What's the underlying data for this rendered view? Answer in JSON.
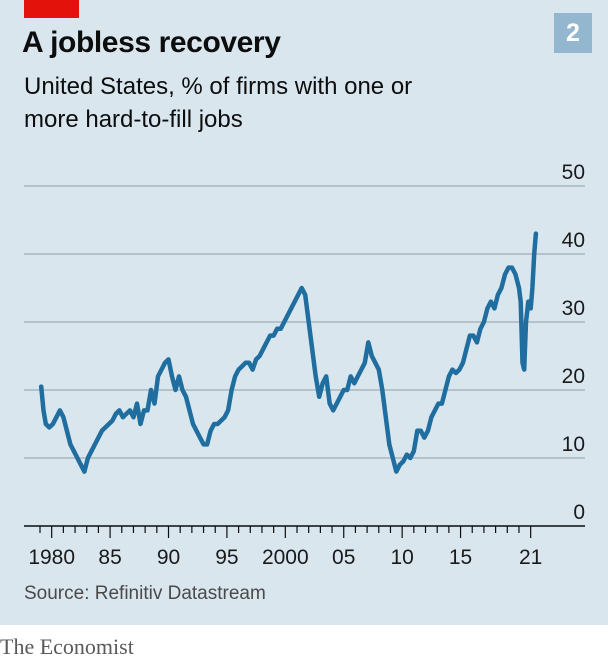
{
  "header": {
    "title": "A jobless recovery",
    "subtitle": "United States, % of firms with one or more hard-to-fill jobs",
    "chart_number": "2"
  },
  "footer": {
    "source": "Source: Refinitiv Datastream",
    "brand": "The Economist"
  },
  "colors": {
    "background": "#d9e6ee",
    "line": "#1f6e9f",
    "accent_tag": "#e3120b",
    "badge": "#92b7cf"
  },
  "chart_data": {
    "type": "line",
    "title": "A jobless recovery",
    "subtitle": "United States, % of firms with one or more hard-to-fill jobs",
    "xlabel": "",
    "ylabel": "",
    "ylim": [
      0,
      50
    ],
    "xlim": [
      1979,
      2021.8
    ],
    "yticks": [
      0,
      10,
      20,
      30,
      40,
      50
    ],
    "ytick_labels": [
      "0",
      "10",
      "20",
      "30",
      "40",
      "50"
    ],
    "y_axis_position": "right",
    "xticks": [
      1980,
      1985,
      1990,
      1995,
      2000,
      2005,
      2010,
      2015,
      2021
    ],
    "xtick_labels": [
      "1980",
      "85",
      "90",
      "95",
      "2000",
      "05",
      "10",
      "15",
      "21"
    ],
    "grid": true,
    "series": [
      {
        "x": [
          1979.1,
          1979.3,
          1979.5,
          1979.8,
          1980.1,
          1980.4,
          1980.7,
          1981.0,
          1981.3,
          1981.6,
          1981.9,
          1982.2,
          1982.5,
          1982.8,
          1983.1,
          1983.4,
          1983.7,
          1984.0,
          1984.3,
          1984.6,
          1984.9,
          1985.2,
          1985.5,
          1985.8,
          1986.1,
          1986.4,
          1986.7,
          1987.0,
          1987.3,
          1987.6,
          1987.9,
          1988.2,
          1988.5,
          1988.8,
          1989.1,
          1989.4,
          1989.7,
          1990.0,
          1990.3,
          1990.6,
          1990.9,
          1991.2,
          1991.5,
          1991.8,
          1992.1,
          1992.4,
          1992.7,
          1993.0,
          1993.3,
          1993.6,
          1993.9,
          1994.2,
          1994.5,
          1994.8,
          1995.1,
          1995.4,
          1995.7,
          1996.0,
          1996.3,
          1996.6,
          1996.9,
          1997.2,
          1997.5,
          1997.8,
          1998.1,
          1998.4,
          1998.7,
          1999.0,
          1999.3,
          1999.6,
          1999.9,
          2000.2,
          2000.5,
          2000.8,
          2001.1,
          2001.4,
          2001.7,
          2002.0,
          2002.3,
          2002.6,
          2002.9,
          2003.2,
          2003.5,
          2003.8,
          2004.1,
          2004.4,
          2004.7,
          2005.0,
          2005.3,
          2005.6,
          2005.9,
          2006.2,
          2006.5,
          2006.8,
          2007.1,
          2007.4,
          2007.7,
          2008.0,
          2008.3,
          2008.6,
          2008.9,
          2009.2,
          2009.5,
          2009.8,
          2010.1,
          2010.4,
          2010.7,
          2011.0,
          2011.3,
          2011.6,
          2011.9,
          2012.2,
          2012.5,
          2012.8,
          2013.1,
          2013.4,
          2013.7,
          2014.0,
          2014.3,
          2014.6,
          2014.9,
          2015.2,
          2015.5,
          2015.8,
          2016.1,
          2016.4,
          2016.7,
          2017.0,
          2017.3,
          2017.6,
          2017.9,
          2018.2,
          2018.5,
          2018.8,
          2019.1,
          2019.4,
          2019.7,
          2020.0,
          2020.15,
          2020.3,
          2020.45,
          2020.6,
          2020.8,
          2021.0,
          2021.15,
          2021.3,
          2021.45
        ],
        "values": [
          20.5,
          17,
          15,
          14.5,
          15,
          16,
          17,
          16,
          14,
          12,
          11,
          10,
          9,
          8,
          10,
          11,
          12,
          13,
          14,
          14.5,
          15,
          15.5,
          16.5,
          17,
          16,
          16.5,
          17,
          16,
          18,
          15,
          17,
          17,
          20,
          18,
          22,
          23,
          24,
          24.5,
          22,
          20,
          22,
          20,
          19,
          17,
          15,
          14,
          13,
          12,
          12,
          14,
          15,
          15,
          15.5,
          16,
          17,
          20,
          22,
          23,
          23.5,
          24,
          24,
          23,
          24.5,
          25,
          26,
          27,
          28,
          28,
          29,
          29,
          30,
          31,
          32,
          33,
          34,
          35,
          34,
          30,
          26,
          22,
          19,
          21,
          22,
          18,
          17,
          18,
          19,
          20,
          20,
          22,
          21,
          22,
          23,
          24,
          27,
          25,
          24,
          23,
          20,
          16,
          12,
          10,
          8,
          9,
          9.5,
          10.5,
          10,
          11,
          14,
          14,
          13,
          14,
          16,
          17,
          18,
          18,
          20,
          22,
          23,
          22.5,
          23,
          24,
          26,
          28,
          28,
          27,
          29,
          30,
          32,
          33,
          32,
          34,
          35,
          37,
          38,
          38,
          37,
          35,
          33,
          24,
          23,
          30,
          33,
          32,
          35,
          40,
          43
        ]
      }
    ]
  }
}
